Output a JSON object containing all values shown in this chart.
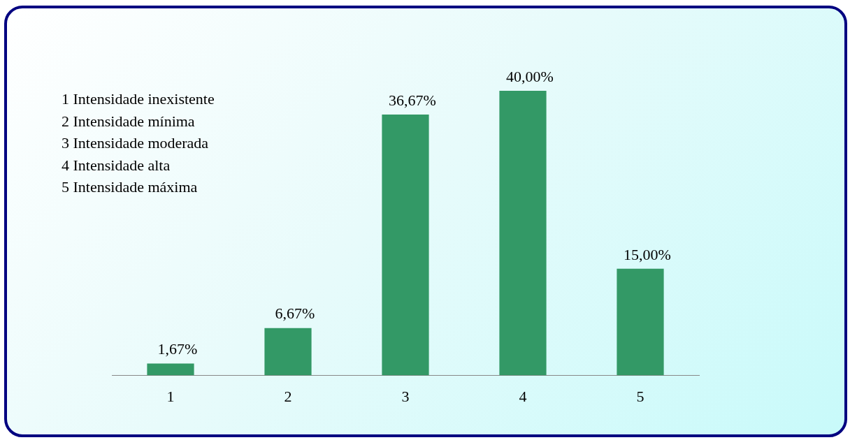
{
  "chart_data": {
    "type": "bar",
    "categories": [
      "1",
      "2",
      "3",
      "4",
      "5"
    ],
    "values": [
      1.67,
      6.67,
      36.67,
      40.0,
      15.0
    ],
    "value_labels": [
      "1,67%",
      "6,67%",
      "36,67%",
      "40,00%",
      "15,00%"
    ],
    "color": "#339966",
    "annotations": [
      "1 Intensidade inexistente",
      "2 Intensidade mínima",
      "3 Intensidade moderada",
      "4 Intensidade alta",
      "5 Intensidade máxima"
    ],
    "grid": false,
    "legend": false
  }
}
